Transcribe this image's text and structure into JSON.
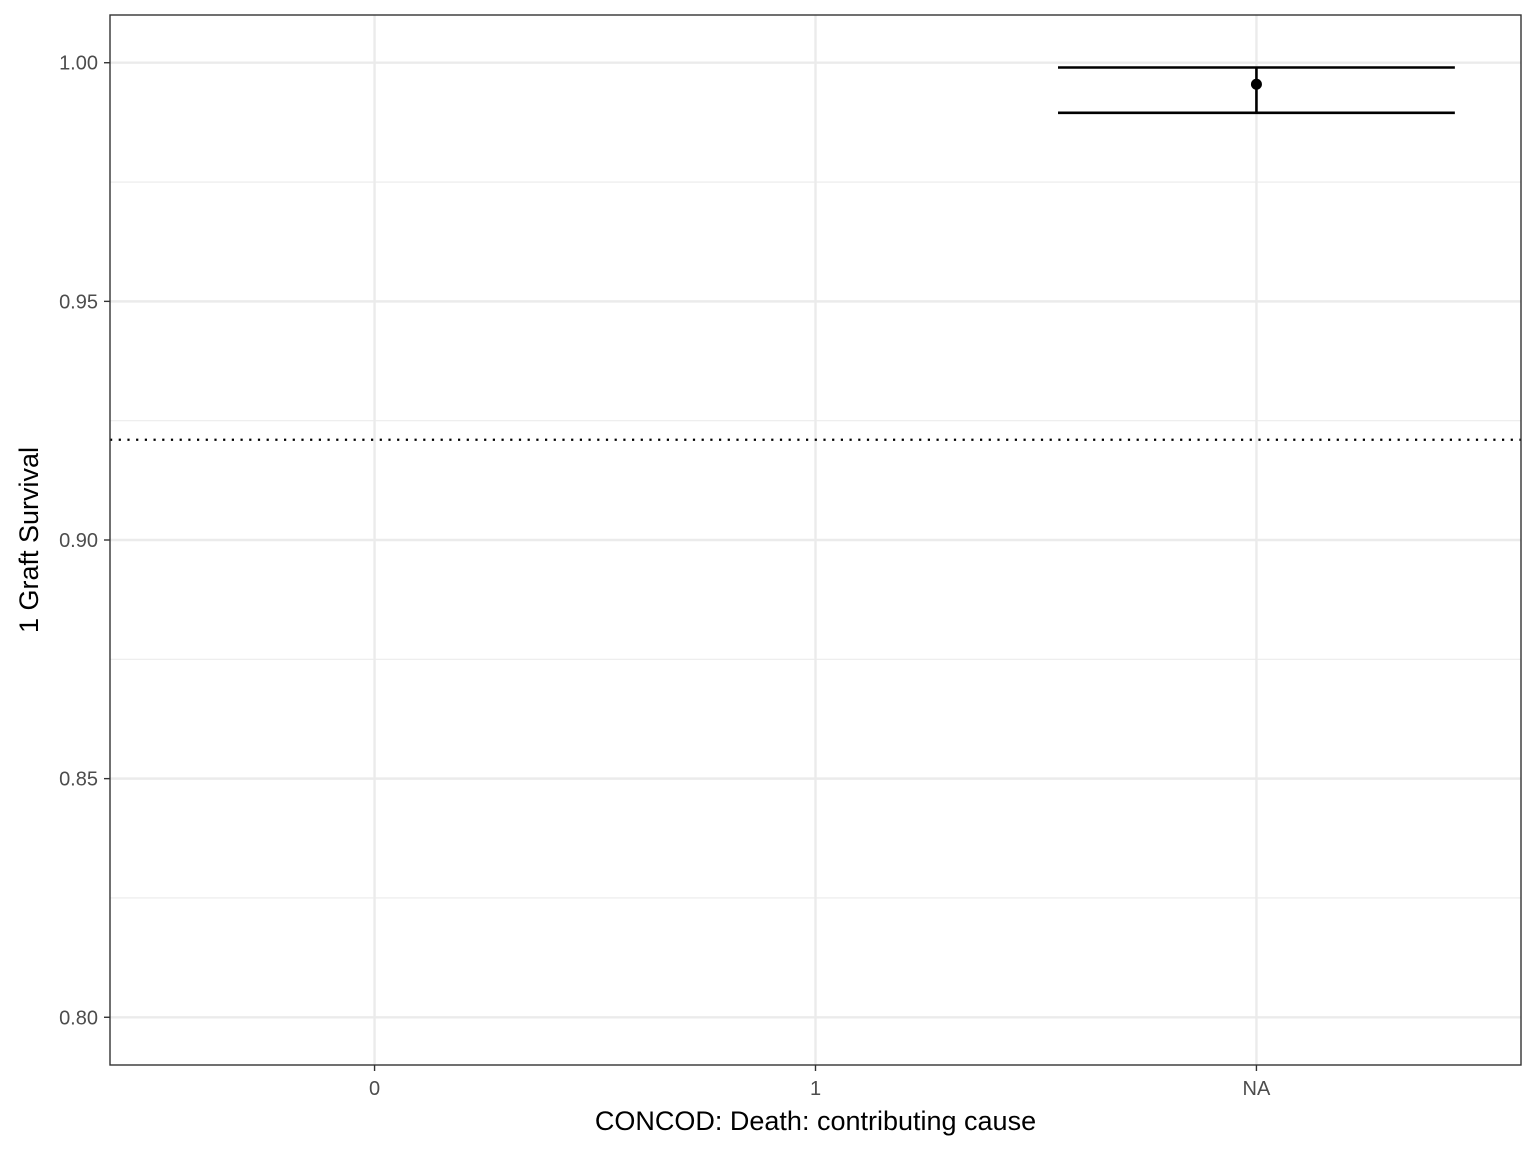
{
  "chart_data": {
    "type": "scatter",
    "title": "",
    "xlabel": "CONCOD: Death: contributing cause",
    "ylabel": "1 Graft Survival",
    "categories": [
      "0",
      "1",
      "NA"
    ],
    "ylim": [
      0.79,
      1.01
    ],
    "y_ticks": [
      0.8,
      0.85,
      0.9,
      0.95,
      1.0
    ],
    "y_tick_labels": [
      "0.80",
      "0.85",
      "0.90",
      "0.95",
      "1.00"
    ],
    "reference_line": {
      "y": 0.921,
      "style": "dotted"
    },
    "points": [
      {
        "category": "NA",
        "y": 0.9955,
        "ymin": 0.9895,
        "ymax": 0.999
      }
    ],
    "grid": true,
    "legend": "none",
    "colors": {
      "grid": "#ebebeb",
      "mark": "#000000",
      "panel_border": "#333333",
      "tick_label": "#4d4d4d"
    }
  }
}
